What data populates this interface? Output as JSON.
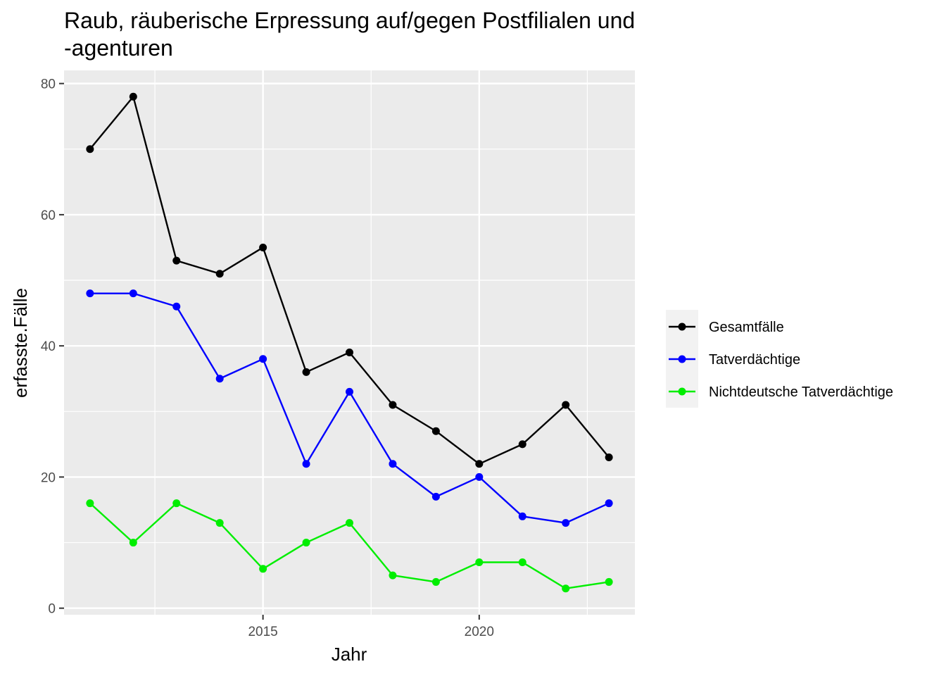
{
  "chart_data": {
    "type": "line",
    "title_line1": "Raub, räuberische Erpressung auf/gegen Postfilialen und",
    "title_line2": "-agenturen",
    "xlabel": "Jahr",
    "ylabel": "erfasste.Fälle",
    "x": [
      2011,
      2012,
      2013,
      2014,
      2015,
      2016,
      2017,
      2018,
      2019,
      2020,
      2021,
      2022,
      2023
    ],
    "xlim": [
      2010.4,
      2023.6
    ],
    "ylim": [
      -1,
      82
    ],
    "x_ticks": [
      "2015",
      "2020"
    ],
    "y_ticks": [
      "0",
      "20",
      "40",
      "60",
      "80"
    ],
    "grid": true,
    "legend_position": "right",
    "series": [
      {
        "name": "Gesamtfälle",
        "color": "#000000",
        "values": [
          70,
          78,
          53,
          51,
          55,
          36,
          39,
          31,
          27,
          22,
          25,
          31,
          23
        ]
      },
      {
        "name": "Tatverdächtige",
        "color": "#0000ff",
        "values": [
          48,
          48,
          46,
          35,
          38,
          22,
          33,
          22,
          17,
          20,
          14,
          13,
          16
        ]
      },
      {
        "name": "Nichtdeutsche Tatverdächtige",
        "color": "#00ee00",
        "values": [
          16,
          10,
          16,
          13,
          6,
          10,
          13,
          5,
          4,
          7,
          7,
          3,
          4
        ]
      }
    ]
  }
}
